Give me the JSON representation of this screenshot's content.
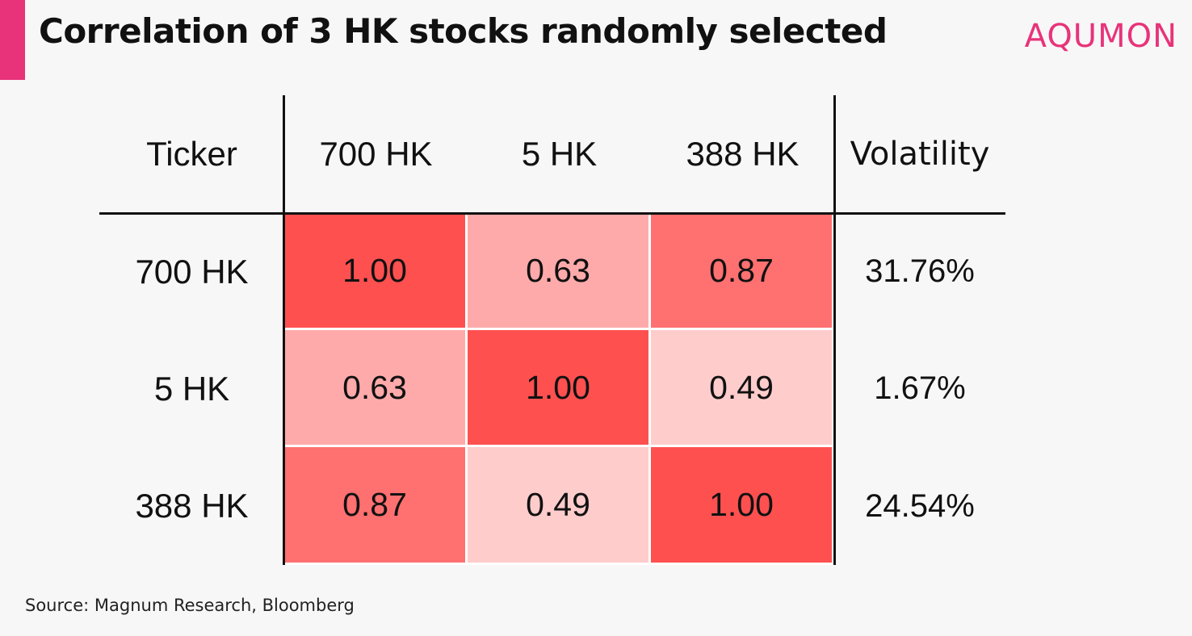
{
  "header": {
    "title": "Correlation of 3 HK stocks randomly selected",
    "brand": "AQUMON",
    "accent_color": "#e8337a"
  },
  "footer": {
    "source": "Source: Magnum Research, Bloomberg"
  },
  "chart_data": {
    "type": "heatmap",
    "title": "Correlation of 3 HK stocks randomly selected",
    "corner_label": "Ticker",
    "columns": [
      "700 HK",
      "5 HK",
      "388 HK"
    ],
    "rows": [
      "700 HK",
      "5 HK",
      "388 HK"
    ],
    "values": [
      [
        "1.00",
        "0.63",
        "0.87"
      ],
      [
        "0.63",
        "1.00",
        "0.49"
      ],
      [
        "0.87",
        "0.49",
        "1.00"
      ]
    ],
    "extra_column": {
      "label": "Volatility",
      "values": [
        "31.76%",
        "1.67%",
        "24.54%"
      ]
    },
    "color_scale": {
      "low": "#ffcccc",
      "high": "#ff5050"
    }
  }
}
